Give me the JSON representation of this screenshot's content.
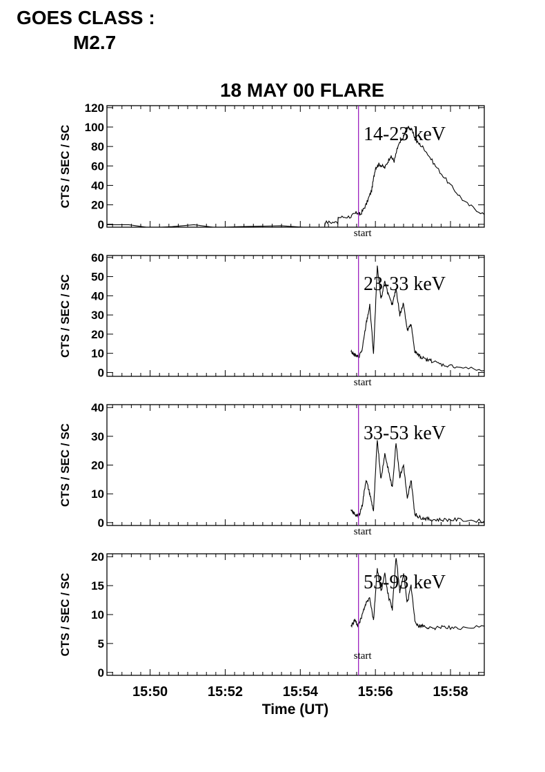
{
  "header": {
    "goes_line1": "GOES CLASS :",
    "goes_line2": "M2.7"
  },
  "chart_data": {
    "type": "line",
    "title": "18 MAY 00 FLARE",
    "xlabel": "Time (UT)",
    "x_unit": "minutes past 15:00 UT",
    "xlim": [
      48.85,
      58.9
    ],
    "xticks": [
      50,
      52,
      54,
      56,
      58
    ],
    "xtick_labels": [
      "15:50",
      "15:52",
      "15:54",
      "15:56",
      "15:58"
    ],
    "marker": {
      "label": "start",
      "x": 55.55,
      "color": "#9b1fbf"
    },
    "line_color": "#000000",
    "panels": [
      {
        "band": "14-23 keV",
        "ylabel": "CTS / SEC / SC",
        "ylim": [
          -3,
          122
        ],
        "yticks": [
          0,
          20,
          40,
          60,
          80,
          100,
          120
        ],
        "x": [
          48.85,
          54.65,
          54.66,
          55.0,
          55.01,
          55.35,
          55.5,
          55.6,
          55.75,
          55.9,
          56.0,
          56.1,
          56.25,
          56.4,
          56.5,
          56.6,
          56.75,
          56.85,
          56.95,
          57.1,
          57.3,
          57.6,
          58.0,
          58.4,
          58.9
        ],
        "values": [
          -2,
          -2,
          2,
          2,
          7,
          8,
          12,
          10,
          20,
          35,
          58,
          62,
          58,
          70,
          65,
          80,
          90,
          100,
          98,
          85,
          78,
          60,
          40,
          22,
          10
        ]
      },
      {
        "band": "23-33 keV",
        "ylabel": "CTS / SEC / SC",
        "ylim": [
          -2,
          61
        ],
        "yticks": [
          0,
          10,
          20,
          30,
          40,
          50,
          60
        ],
        "x": [
          55.35,
          55.45,
          55.55,
          55.65,
          55.75,
          55.85,
          55.95,
          56.05,
          56.15,
          56.25,
          56.35,
          56.45,
          56.55,
          56.65,
          56.75,
          56.85,
          56.95,
          57.05,
          57.15,
          57.3,
          57.5,
          57.8,
          58.2,
          58.9
        ],
        "values": [
          11,
          9,
          8,
          12,
          25,
          35,
          10,
          55,
          38,
          48,
          40,
          35,
          44,
          30,
          36,
          22,
          25,
          11,
          9,
          7,
          6,
          4,
          3,
          1
        ]
      },
      {
        "band": "33-53 keV",
        "ylabel": "CTS / SEC / SC",
        "ylim": [
          -1,
          41
        ],
        "yticks": [
          0,
          10,
          20,
          30,
          40
        ],
        "x": [
          55.35,
          55.45,
          55.55,
          55.65,
          55.75,
          55.85,
          55.95,
          56.05,
          56.15,
          56.25,
          56.35,
          56.45,
          56.55,
          56.65,
          56.75,
          56.85,
          56.95,
          57.05,
          57.15,
          57.3,
          57.5,
          57.8,
          58.2,
          58.9
        ],
        "values": [
          4,
          3,
          2,
          6,
          15,
          10,
          4,
          29,
          15,
          24,
          18,
          12,
          28,
          16,
          20,
          8,
          15,
          3,
          2,
          1.5,
          1,
          1,
          1,
          0.5
        ]
      },
      {
        "band": "53-93 keV",
        "ylabel": "CTS / SEC / SC",
        "ylim": [
          -0.5,
          20.5
        ],
        "yticks": [
          0,
          5,
          10,
          15,
          20
        ],
        "x": [
          55.35,
          55.45,
          55.55,
          55.65,
          55.75,
          55.85,
          55.95,
          56.05,
          56.15,
          56.25,
          56.35,
          56.45,
          56.55,
          56.65,
          56.75,
          56.85,
          56.95,
          57.05,
          57.15,
          57.3,
          57.5,
          57.8,
          58.2,
          58.9
        ],
        "values": [
          8,
          9,
          8,
          10,
          12,
          13,
          9,
          18,
          14,
          17,
          13,
          11,
          20,
          14,
          17,
          12,
          15,
          9,
          8,
          8,
          7.5,
          8,
          7.5,
          8
        ]
      }
    ]
  }
}
